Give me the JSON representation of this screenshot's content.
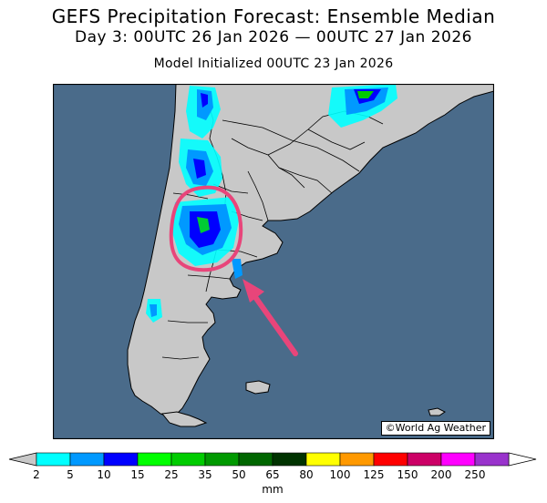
{
  "title": {
    "line1": "GEFS Precipitation Forecast: Ensemble Median",
    "line2": "Day 3: 00UTC 26 Jan 2026 — 00UTC 27 Jan 2026",
    "line3": "Model Initialized 00UTC 23 Jan 2026"
  },
  "credit": "©World Ag Weather",
  "colorbar": {
    "units": "mm",
    "labels": [
      "2",
      "5",
      "10",
      "15",
      "25",
      "35",
      "50",
      "65",
      "80",
      "100",
      "125",
      "150",
      "200",
      "250"
    ],
    "colors": [
      "#00ffff",
      "#0099ff",
      "#0000ff",
      "#00ff00",
      "#00cc00",
      "#009900",
      "#006600",
      "#003300",
      "#ffff00",
      "#ff9900",
      "#ff0000",
      "#cc0066",
      "#ff00ff",
      "#9933cc"
    ],
    "end_color": "#c8c8c8"
  },
  "map": {
    "ocean_color": "#4a6b8a",
    "land_color": "#c8c8c8",
    "highlight_color": "#e8457a",
    "annotations": [
      "highlight-circle",
      "arrow-pointer"
    ]
  }
}
